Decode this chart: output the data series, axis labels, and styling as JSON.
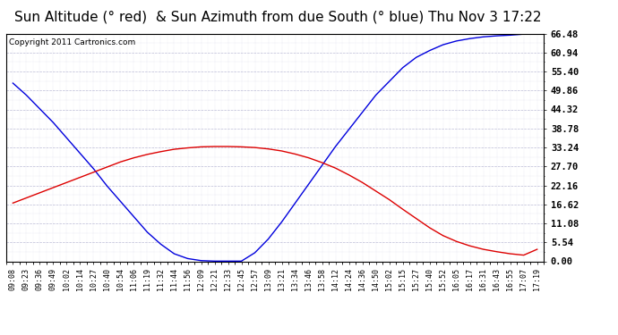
{
  "title": "Sun Altitude (° red)  & Sun Azimuth from due South (° blue) Thu Nov 3 17:22",
  "copyright": "Copyright 2011 Cartronics.com",
  "yticks": [
    0.0,
    5.54,
    11.08,
    16.62,
    22.16,
    27.7,
    33.24,
    38.78,
    44.32,
    49.86,
    55.4,
    60.94,
    66.48
  ],
  "ylim": [
    0.0,
    66.48
  ],
  "xlabels": [
    "09:08",
    "09:23",
    "09:36",
    "09:49",
    "10:02",
    "10:14",
    "10:27",
    "10:40",
    "10:54",
    "11:06",
    "11:19",
    "11:32",
    "11:44",
    "11:56",
    "12:09",
    "12:21",
    "12:33",
    "12:45",
    "12:57",
    "13:09",
    "13:21",
    "13:34",
    "13:46",
    "13:58",
    "14:12",
    "14:24",
    "14:36",
    "14:50",
    "15:02",
    "15:15",
    "15:27",
    "15:40",
    "15:52",
    "16:05",
    "16:17",
    "16:31",
    "16:43",
    "16:55",
    "17:07",
    "17:19"
  ],
  "blue_values": [
    52.0,
    48.5,
    44.5,
    40.5,
    36.0,
    31.5,
    27.0,
    22.0,
    17.5,
    13.0,
    8.5,
    5.0,
    2.2,
    0.8,
    0.2,
    0.05,
    0.05,
    0.05,
    2.5,
    6.5,
    11.5,
    17.0,
    22.5,
    28.0,
    33.5,
    38.5,
    43.5,
    48.5,
    52.5,
    56.5,
    59.5,
    61.5,
    63.2,
    64.3,
    65.0,
    65.5,
    65.8,
    66.0,
    66.3,
    66.48
  ],
  "red_values": [
    17.0,
    18.5,
    20.0,
    21.5,
    23.0,
    24.5,
    26.0,
    27.5,
    29.0,
    30.2,
    31.2,
    32.0,
    32.7,
    33.1,
    33.4,
    33.5,
    33.5,
    33.4,
    33.2,
    32.8,
    32.2,
    31.3,
    30.2,
    28.8,
    27.2,
    25.2,
    23.0,
    20.5,
    18.0,
    15.2,
    12.5,
    9.8,
    7.5,
    5.8,
    4.5,
    3.5,
    2.8,
    2.2,
    1.8,
    3.5
  ],
  "blue_color": "#0000dd",
  "red_color": "#dd0000",
  "bg_color": "#ffffff",
  "grid_color": "#aaaacc",
  "title_fontsize": 11,
  "copyright_fontsize": 6.5,
  "tick_fontsize": 6,
  "ytick_fontsize": 7.5
}
